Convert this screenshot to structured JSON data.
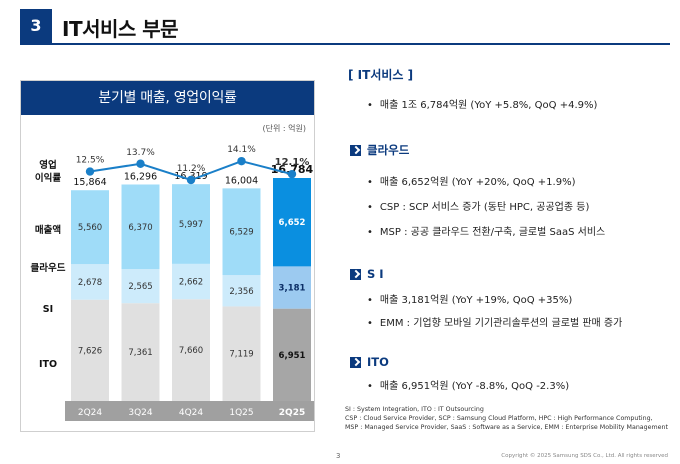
{
  "header": {
    "section_number": "3",
    "section_title": "IT서비스 부문"
  },
  "chart_panel": {
    "title": "분기별 매출, 영업이익률",
    "unit": "(단위 : 억원)",
    "row_labels": {
      "margin": "영업\n이익률",
      "revenue": "매출액",
      "cloud": "클라우드",
      "si": "SI",
      "ito": "ITO"
    }
  },
  "chart_data": {
    "type": "bar",
    "categories": [
      "2Q24",
      "3Q24",
      "4Q24",
      "1Q25",
      "2Q25"
    ],
    "series": [
      {
        "name": "ITO",
        "values": [
          7626,
          7361,
          7660,
          7119,
          6951
        ]
      },
      {
        "name": "SI",
        "values": [
          2678,
          2565,
          2662,
          2356,
          3181
        ]
      },
      {
        "name": "클라우드",
        "values": [
          5560,
          6370,
          5997,
          6529,
          6652
        ]
      }
    ],
    "totals": [
      15864,
      16296,
      16319,
      16004,
      16784
    ],
    "total_labels": [
      "15,864",
      "16,296",
      "16,319",
      "16,004",
      "16,784"
    ],
    "cloud_labels": [
      "5,560",
      "6,370",
      "5,997",
      "6,529",
      "6,652"
    ],
    "si_labels": [
      "2,678",
      "2,565",
      "2,662",
      "2,356",
      "3,181"
    ],
    "ito_labels": [
      "7,626",
      "7,361",
      "7,660",
      "7,119",
      "6,951"
    ],
    "margin": [
      12.5,
      13.7,
      11.2,
      14.1,
      12.1
    ],
    "margin_labels": [
      "12.5%",
      "13.7%",
      "11.2%",
      "14.1%",
      "12.1%"
    ],
    "highlight_index": 4,
    "colors": {
      "cloud": "#9fdcf8",
      "cloud_hl": "#0a8fe0",
      "si": "#cdebfb",
      "si_hl": "#9ccaf0",
      "ito": "#e0e0e0",
      "ito_hl": "#a6a6a6",
      "line": "#1a7fc8",
      "axis_band": "#a0a0a0"
    }
  },
  "summary": {
    "title": "[ IT서비스 ]",
    "items": [
      "매출 1조 6,784억원 (YoY +5.8%, QoQ +4.9%)"
    ]
  },
  "cloud": {
    "title": "클라우드",
    "items": [
      "매출 6,652억원 (YoY +20%, QoQ +1.9%)",
      "CSP : SCP 서비스 증가 (동탄 HPC, 공공업종 등)",
      "MSP : 공공 클라우드 전환/구축, 글로벌 SaaS 서비스"
    ]
  },
  "si": {
    "title": "S I",
    "items": [
      "매출 3,181억원 (YoY +19%, QoQ +35%)",
      "EMM : 기업향 모바일 기기관리솔루션의 글로벌 판매 증가"
    ]
  },
  "ito": {
    "title": "ITO",
    "items": [
      "매출 6,951억원 (YoY -8.8%, QoQ -2.3%)"
    ]
  },
  "footnotes": [
    "SI : System Integration, ITO : IT Outsourcing",
    "CSP : Cloud Service Provider, SCP : Samsung Cloud Platform, HPC : High Performance Computing,",
    "MSP : Managed Service Provider, SaaS : Software as a Service, EMM : Enterprise Mobility Management"
  ],
  "page_number": "3",
  "copyright": "Copyright © 2025 Samsung SDS Co., Ltd. All rights reserved"
}
